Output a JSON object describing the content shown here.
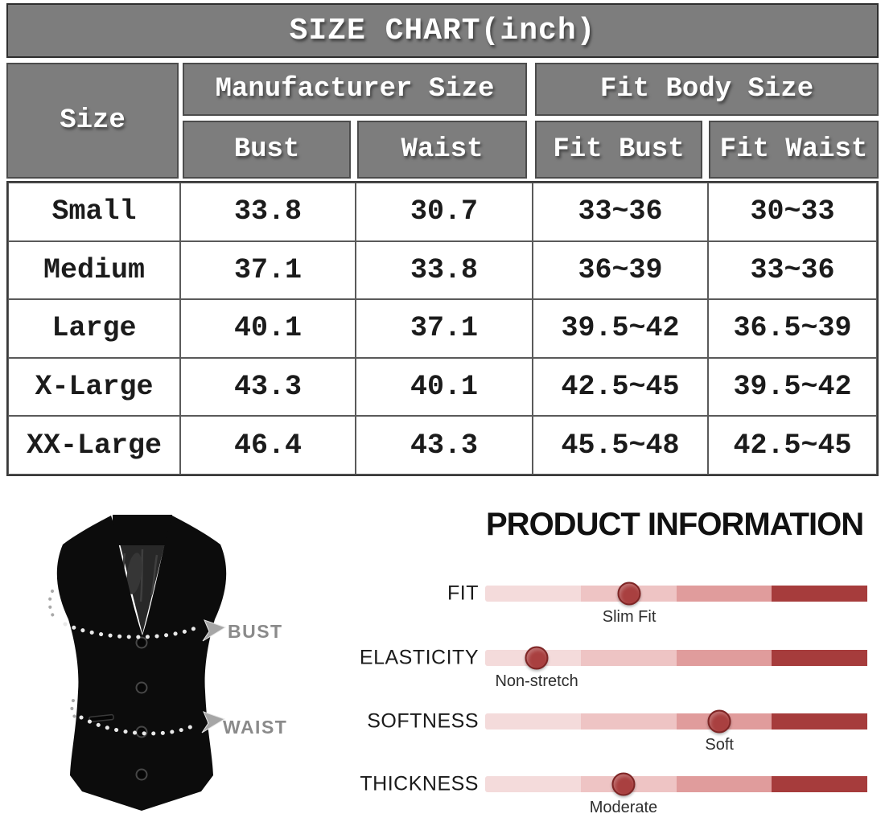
{
  "size_chart": {
    "title": "SIZE CHART(inch)",
    "columns": {
      "size": "Size",
      "manufacturer_group": "Manufacturer Size",
      "fit_body_group": "Fit Body Size",
      "bust": "Bust",
      "waist": "Waist",
      "fit_bust": "Fit Bust",
      "fit_waist": "Fit Waist"
    },
    "rows": [
      {
        "size": "Small",
        "bust": "33.8",
        "waist": "30.7",
        "fit_bust": "33~36",
        "fit_waist": "30~33"
      },
      {
        "size": "Medium",
        "bust": "37.1",
        "waist": "33.8",
        "fit_bust": "36~39",
        "fit_waist": "33~36"
      },
      {
        "size": "Large",
        "bust": "40.1",
        "waist": "37.1",
        "fit_bust": "39.5~42",
        "fit_waist": "36.5~39"
      },
      {
        "size": "X-Large",
        "bust": "43.3",
        "waist": "40.1",
        "fit_bust": "42.5~45",
        "fit_waist": "39.5~42"
      },
      {
        "size": "XX-Large",
        "bust": "46.4",
        "waist": "43.3",
        "fit_bust": "45.5~48",
        "fit_waist": "42.5~45"
      }
    ],
    "header_bg": "#7d7d7d"
  },
  "vest_diagram": {
    "bust_label": "BUST",
    "waist_label": "WAIST"
  },
  "product_info": {
    "title": "PRODUCT INFORMATION",
    "sliders": [
      {
        "label": "FIT",
        "value_label": "Slim Fit",
        "percent": 37.7
      },
      {
        "label": "ELASTICITY",
        "value_label": "Non-stretch",
        "percent": 13.5
      },
      {
        "label": "SOFTNESS",
        "value_label": "Soft",
        "percent": 61.3
      },
      {
        "label": "THICKNESS",
        "value_label": "Moderate",
        "percent": 36.2
      }
    ],
    "scale_colors": [
      "#f4dbdb",
      "#eec4c4",
      "#e09c9c",
      "#a63c3c"
    ],
    "dot_color": "#a94040"
  }
}
